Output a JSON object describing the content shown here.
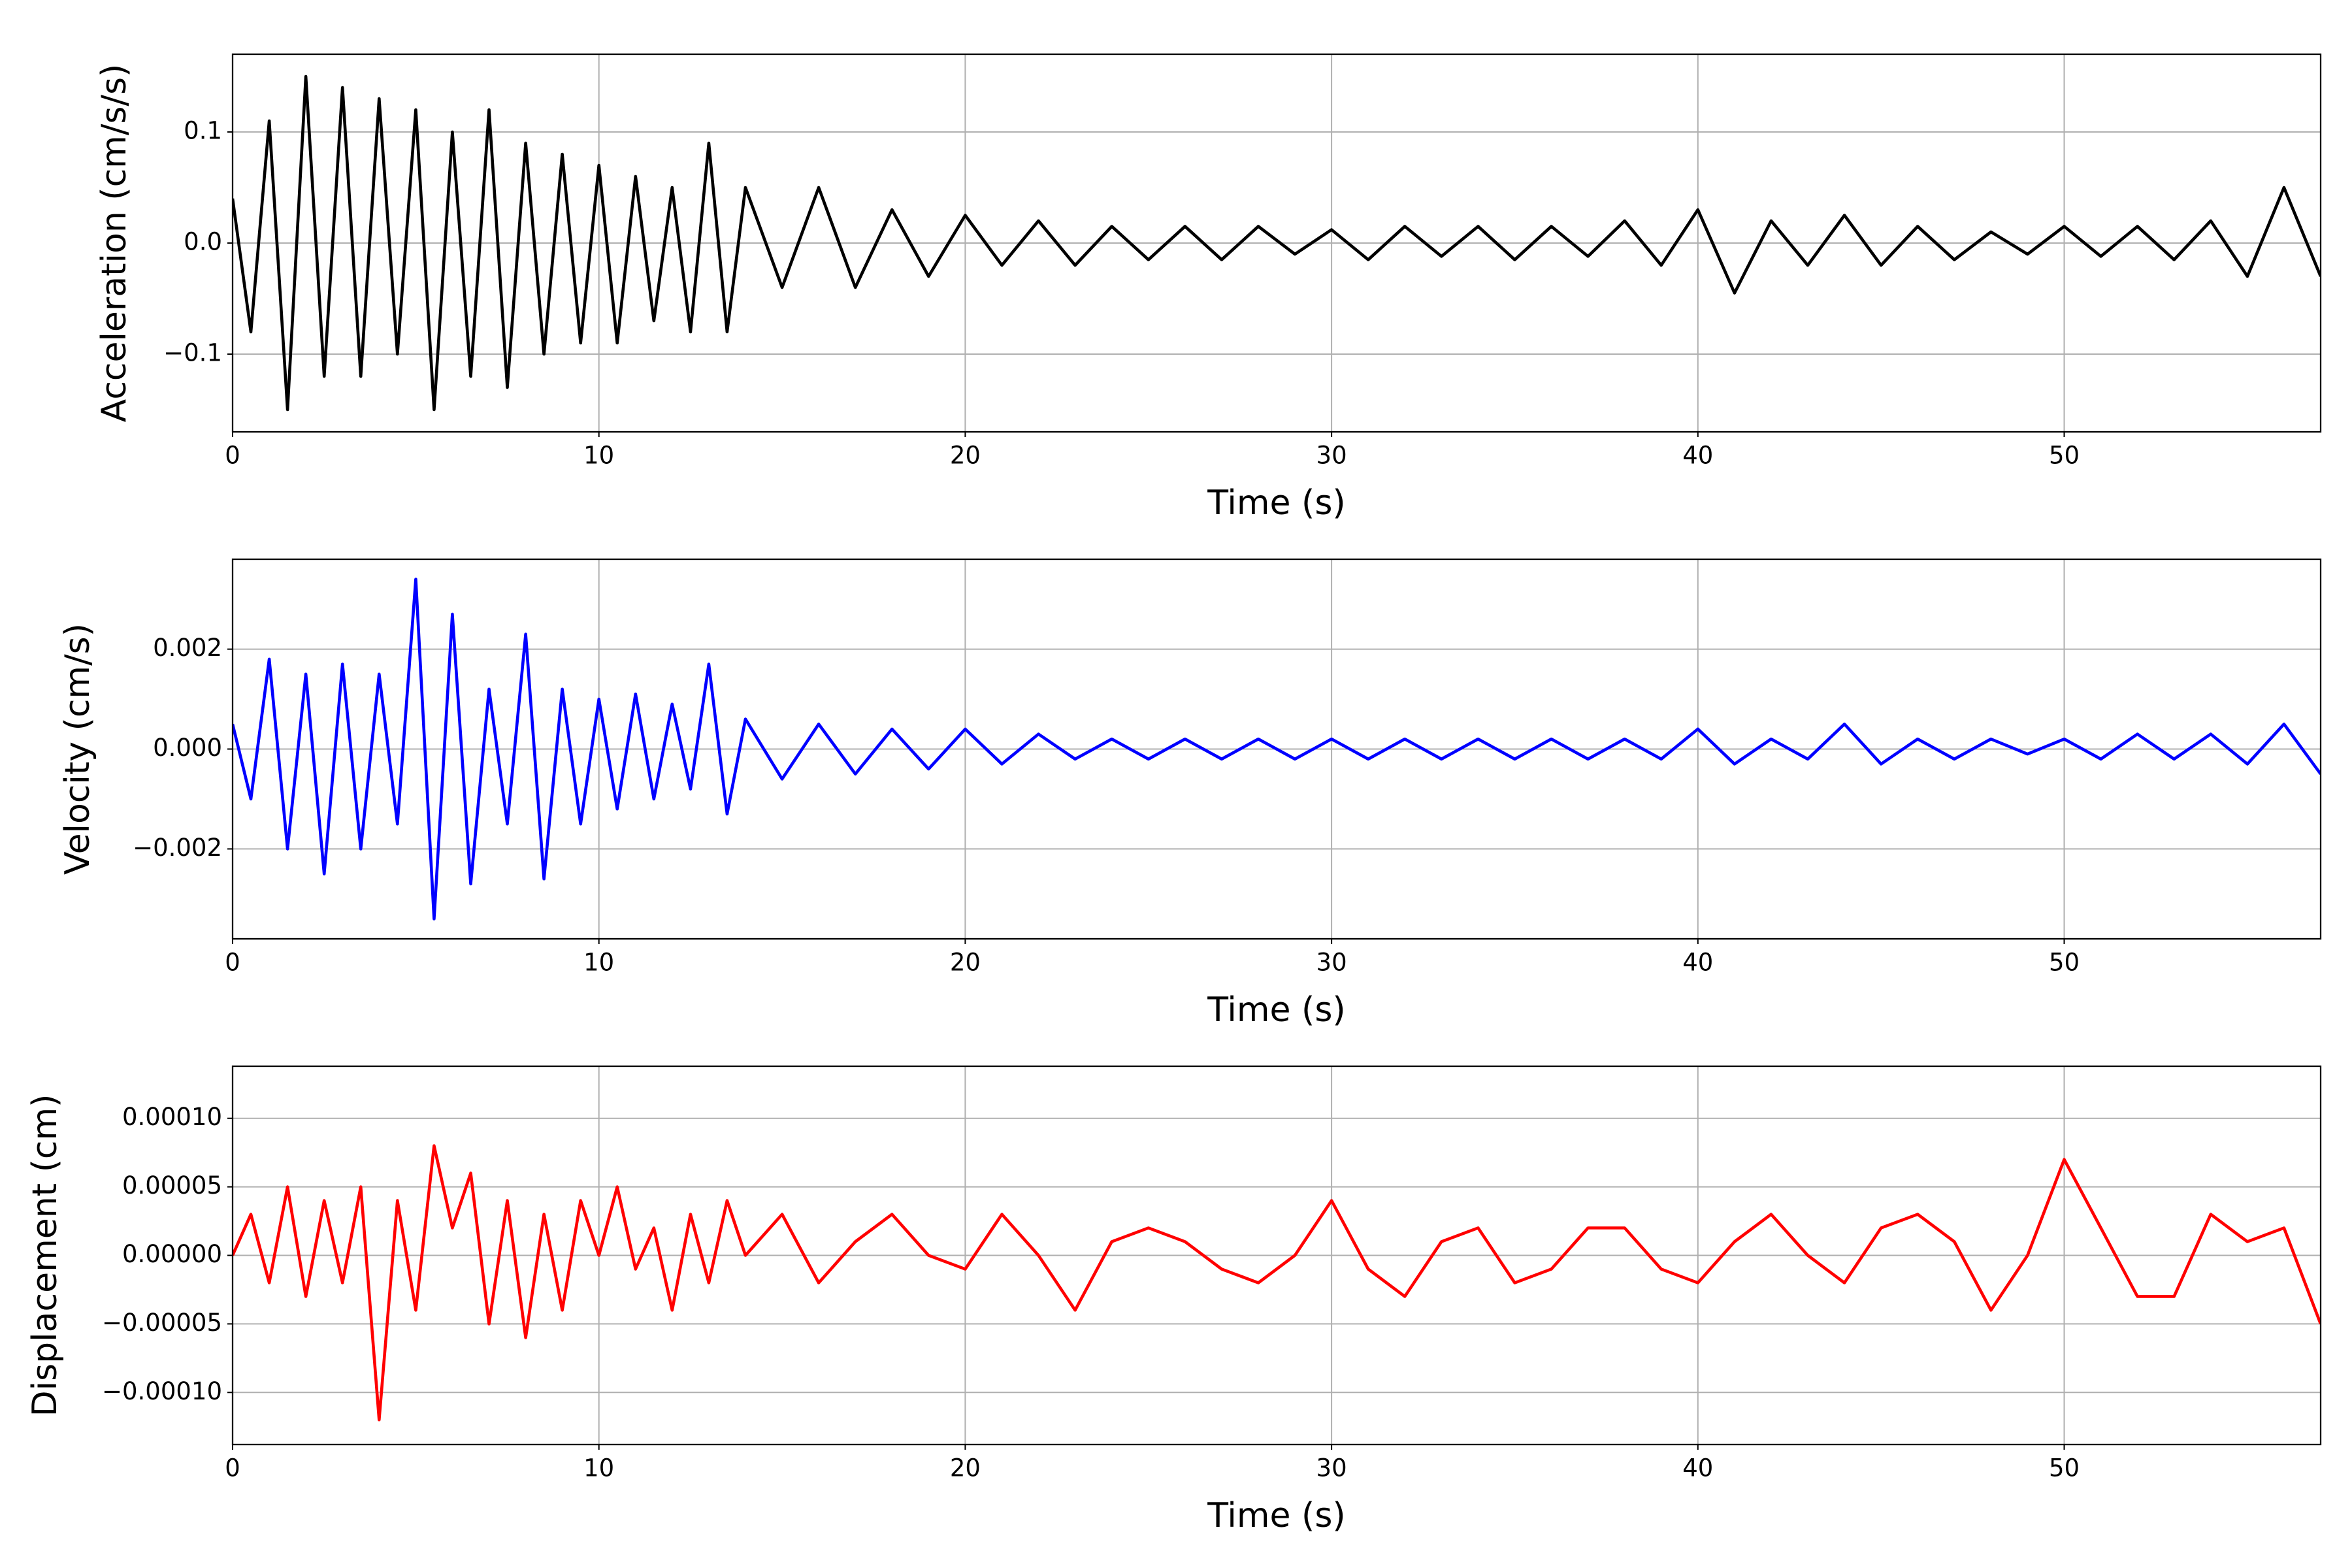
{
  "chart_data": [
    {
      "type": "line",
      "xlabel": "Time (s)",
      "ylabel": "Acceleration (cm/s/s)",
      "x": [
        0,
        0.5,
        1,
        1.5,
        2,
        2.5,
        3,
        3.5,
        4,
        4.5,
        5,
        5.5,
        6,
        6.5,
        7,
        7.5,
        8,
        8.5,
        9,
        9.5,
        10,
        10.5,
        11,
        11.5,
        12,
        12.5,
        13,
        13.5,
        14,
        15,
        16,
        17,
        18,
        19,
        20,
        21,
        22,
        23,
        24,
        25,
        26,
        27,
        28,
        29,
        30,
        31,
        32,
        33,
        34,
        35,
        36,
        37,
        38,
        39,
        40,
        41,
        42,
        43,
        44,
        45,
        46,
        47,
        48,
        49,
        50,
        51,
        52,
        53,
        54,
        55,
        56,
        57
      ],
      "series": [
        {
          "color": "#000000",
          "values": [
            0.04,
            -0.08,
            0.11,
            -0.15,
            0.15,
            -0.12,
            0.14,
            -0.12,
            0.13,
            -0.1,
            0.12,
            -0.15,
            0.1,
            -0.12,
            0.12,
            -0.13,
            0.09,
            -0.1,
            0.08,
            -0.09,
            0.07,
            -0.09,
            0.06,
            -0.07,
            0.05,
            -0.08,
            0.09,
            -0.08,
            0.05,
            -0.04,
            0.05,
            -0.04,
            0.03,
            -0.03,
            0.025,
            -0.02,
            0.02,
            -0.02,
            0.015,
            -0.015,
            0.015,
            -0.015,
            0.015,
            -0.01,
            0.012,
            -0.015,
            0.015,
            -0.012,
            0.015,
            -0.015,
            0.015,
            -0.012,
            0.02,
            -0.02,
            0.03,
            -0.045,
            0.02,
            -0.02,
            0.025,
            -0.02,
            0.015,
            -0.015,
            0.01,
            -0.01,
            0.015,
            -0.012,
            0.015,
            -0.015,
            0.02,
            -0.03,
            0.05,
            -0.03
          ]
        }
      ],
      "xlim": [
        0,
        57
      ],
      "xticks": [
        0,
        10,
        20,
        30,
        40,
        50
      ],
      "ylim": [
        -0.17,
        0.17
      ],
      "yticks": [
        {
          "value": -0.1,
          "label": "−0.1"
        },
        {
          "value": 0,
          "label": "0.0"
        },
        0.1
      ],
      "grid": true
    },
    {
      "type": "line",
      "xlabel": "Time (s)",
      "ylabel": "Velocity (cm/s)",
      "x": [
        0,
        0.5,
        1,
        1.5,
        2,
        2.5,
        3,
        3.5,
        4,
        4.5,
        5,
        5.5,
        6,
        6.5,
        7,
        7.5,
        8,
        8.5,
        9,
        9.5,
        10,
        10.5,
        11,
        11.5,
        12,
        12.5,
        13,
        13.5,
        14,
        15,
        16,
        17,
        18,
        19,
        20,
        21,
        22,
        23,
        24,
        25,
        26,
        27,
        28,
        29,
        30,
        31,
        32,
        33,
        34,
        35,
        36,
        37,
        38,
        39,
        40,
        41,
        42,
        43,
        44,
        45,
        46,
        47,
        48,
        49,
        50,
        51,
        52,
        53,
        54,
        55,
        56,
        57
      ],
      "series": [
        {
          "color": "#0000ff",
          "values": [
            0.0005,
            -0.001,
            0.0018,
            -0.002,
            0.0015,
            -0.0025,
            0.0017,
            -0.002,
            0.0015,
            -0.0015,
            0.0034,
            -0.0034,
            0.0027,
            -0.0027,
            0.0012,
            -0.0015,
            0.0023,
            -0.0026,
            0.0012,
            -0.0015,
            0.001,
            -0.0012,
            0.0011,
            -0.001,
            0.0009,
            -0.0008,
            0.0017,
            -0.0013,
            0.0006,
            -0.0006,
            0.0005,
            -0.0005,
            0.0004,
            -0.0004,
            0.0004,
            -0.0003,
            0.0003,
            -0.0002,
            0.0002,
            -0.0002,
            0.0002,
            -0.0002,
            0.0002,
            -0.0002,
            0.0002,
            -0.0002,
            0.0002,
            -0.0002,
            0.0002,
            -0.0002,
            0.0002,
            -0.0002,
            0.0002,
            -0.0002,
            0.0004,
            -0.0003,
            0.0002,
            -0.0002,
            0.0005,
            -0.0003,
            0.0002,
            -0.0002,
            0.0002,
            -0.0001,
            0.0002,
            -0.0002,
            0.0003,
            -0.0002,
            0.0003,
            -0.0003,
            0.0005,
            -0.0005
          ]
        }
      ],
      "xlim": [
        0,
        57
      ],
      "xticks": [
        0,
        10,
        20,
        30,
        40,
        50
      ],
      "ylim": [
        -0.0038,
        0.0038
      ],
      "yticks": [
        {
          "value": -0.002,
          "label": "−0.002"
        },
        {
          "value": 0,
          "label": "0.000"
        },
        0.002
      ],
      "grid": true
    },
    {
      "type": "line",
      "xlabel": "Time (s)",
      "ylabel": "Displacement (cm)",
      "x": [
        0,
        0.5,
        1,
        1.5,
        2,
        2.5,
        3,
        3.5,
        4,
        4.5,
        5,
        5.5,
        6,
        6.5,
        7,
        7.5,
        8,
        8.5,
        9,
        9.5,
        10,
        10.5,
        11,
        11.5,
        12,
        12.5,
        13,
        13.5,
        14,
        15,
        16,
        17,
        18,
        19,
        20,
        21,
        22,
        23,
        24,
        25,
        26,
        27,
        28,
        29,
        30,
        31,
        32,
        33,
        34,
        35,
        36,
        37,
        38,
        39,
        40,
        41,
        42,
        43,
        44,
        45,
        46,
        47,
        48,
        49,
        50,
        51,
        52,
        53,
        54,
        55,
        56,
        57
      ],
      "series": [
        {
          "color": "#ff0000",
          "values": [
            0,
            3e-05,
            -2e-05,
            5e-05,
            -3e-05,
            4e-05,
            -2e-05,
            5e-05,
            -0.00012,
            4e-05,
            -4e-05,
            8e-05,
            2e-05,
            6e-05,
            -5e-05,
            4e-05,
            -6e-05,
            3e-05,
            -4e-05,
            4e-05,
            0,
            5e-05,
            -1e-05,
            2e-05,
            -4e-05,
            3e-05,
            -2e-05,
            4e-05,
            0,
            3e-05,
            -2e-05,
            1e-05,
            3e-05,
            0,
            -1e-05,
            3e-05,
            0,
            -4e-05,
            1e-05,
            2e-05,
            1e-05,
            -1e-05,
            -2e-05,
            0,
            4e-05,
            -1e-05,
            -3e-05,
            1e-05,
            2e-05,
            -2e-05,
            -1e-05,
            2e-05,
            2e-05,
            -1e-05,
            -2e-05,
            1e-05,
            3e-05,
            0,
            -2e-05,
            2e-05,
            3e-05,
            1e-05,
            -4e-05,
            0,
            7e-05,
            2e-05,
            -3e-05,
            -3e-05,
            3e-05,
            1e-05,
            2e-05,
            -5e-05
          ]
        }
      ],
      "xlim": [
        0,
        57
      ],
      "xticks": [
        0,
        10,
        20,
        30,
        40,
        50
      ],
      "ylim": [
        -0.000138,
        0.000138
      ],
      "yticks": [
        {
          "value": -0.0001,
          "label": "−0.00010"
        },
        {
          "value": -5e-05,
          "label": "−0.00005"
        },
        {
          "value": 0,
          "label": "0.00000"
        },
        {
          "value": 5e-05,
          "label": "0.00005"
        },
        {
          "value": 0.0001,
          "label": "0.00010"
        }
      ],
      "grid": true
    }
  ]
}
